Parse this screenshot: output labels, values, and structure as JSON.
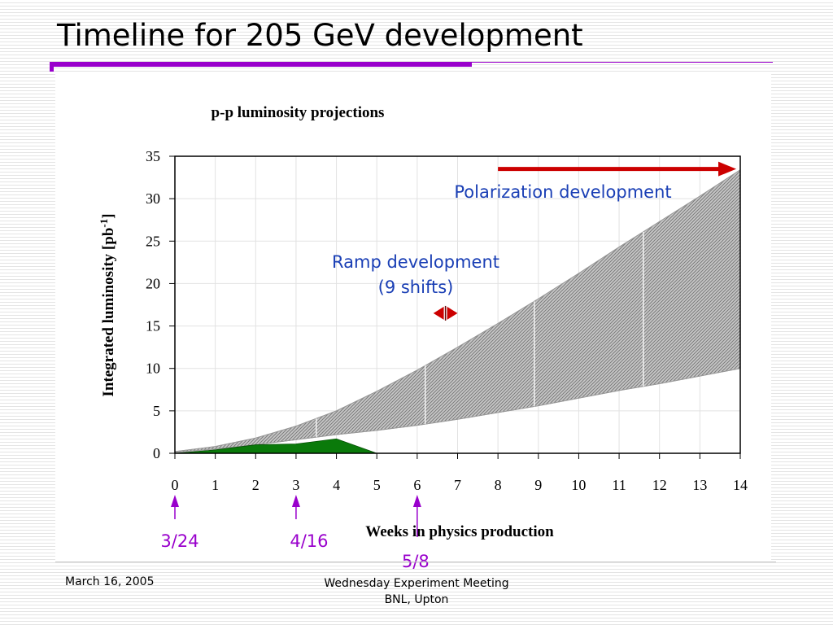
{
  "slide": {
    "title": "Timeline for 205 GeV development",
    "footer_date": "March 16, 2005",
    "footer_meeting": "Wednesday Experiment Meeting",
    "footer_place": "BNL, Upton"
  },
  "colors": {
    "accent": "#9900cc",
    "band": "#b0b0b0",
    "band_edge": "#8a8a8a",
    "delivered": "#0a7a0a",
    "arrow": "#cc0000",
    "annotation_text": "#1a3fb5",
    "date_marker": "#9900cc"
  },
  "chart_data": {
    "type": "area",
    "title": "p-p luminosity projections",
    "xlabel": "Weeks in physics production",
    "ylabel": "Integrated luminosity [pb",
    "ylabel_sup": "-1",
    "ylabel_end": "]",
    "xlim": [
      0,
      14
    ],
    "ylim": [
      0,
      35
    ],
    "x_ticks": [
      0,
      1,
      2,
      3,
      4,
      5,
      6,
      7,
      8,
      9,
      10,
      11,
      12,
      13,
      14
    ],
    "y_ticks": [
      0,
      5,
      10,
      15,
      20,
      25,
      30,
      35
    ],
    "grid": true,
    "series": [
      {
        "role": "projection-max",
        "x": [
          0,
          1,
          2,
          3,
          4,
          5,
          6,
          7,
          8,
          9,
          10,
          11,
          12,
          13,
          14
        ],
        "y": [
          0.2,
          0.8,
          1.8,
          3.2,
          5.0,
          7.3,
          9.8,
          12.5,
          15.3,
          18.2,
          21.2,
          24.3,
          27.3,
          30.3,
          33.4
        ]
      },
      {
        "role": "projection-min",
        "x": [
          0,
          1,
          2,
          3,
          4,
          5,
          6,
          7,
          8,
          9,
          10,
          11,
          12,
          13,
          14
        ],
        "y": [
          0.1,
          0.5,
          1.0,
          1.6,
          2.2,
          2.7,
          3.3,
          4.0,
          4.8,
          5.6,
          6.5,
          7.4,
          8.2,
          9.1,
          10.0
        ]
      },
      {
        "role": "delivered",
        "x": [
          0,
          1,
          2,
          3,
          4,
          5
        ],
        "y": [
          0,
          0.4,
          1.0,
          1.1,
          1.7,
          0
        ]
      }
    ],
    "band_dividers_x": [
      3.5,
      6.2,
      8.9,
      11.6
    ],
    "annotations": {
      "polarization_label": "Polarization development",
      "polarization_arrow_x": [
        8,
        13.9
      ],
      "polarization_arrow_y": 33.5,
      "ramp_label_line1": "Ramp development",
      "ramp_label_line2": "(9 shifts)",
      "ramp_arrow_x": [
        6.4,
        7.0
      ],
      "ramp_arrow_y": 16.5
    },
    "date_markers": [
      {
        "x": 0,
        "label": "3/24"
      },
      {
        "x": 3,
        "label": "4/16"
      },
      {
        "x": 6,
        "label": "5/8"
      }
    ]
  }
}
